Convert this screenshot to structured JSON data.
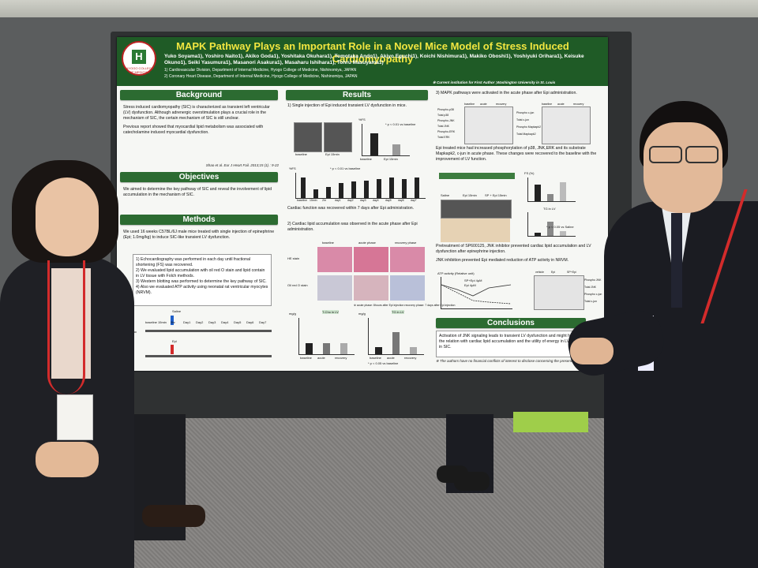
{
  "poster": {
    "title": "MAPK Pathway Plays an Important Role in a Novel Mice Model of Stress Induced Cardiomyopathy",
    "authors": "Yuko Soyama1), Yoshiro Naito1), Akiko Goda1), Yoshitaka Okuhara1), Tomotaka Ando1), Akiyo Eguchi1), Koichi Nishimura1), Makiko Oboshi1), Yoshiyuki Orihara1), Keisuke Okuno1), Seiki Yasumura1), Masanori Asakura1), Masaharu Ishihara1), Tohru Masuyama1)",
    "affiliations": [
      "1)    Cardiovascular Division, Department of Internal Medicine, Hyogo College of Medicine, Nishinomiya, JAPAN",
      "2)    Coronary Heart Disease, Department of Internal Medicine, Hyogo College of Medicine, Nishinomiya, JAPAN"
    ],
    "current_institution": "※ Current institution for First Author ;Washington University in St. Louis",
    "logo_letter": "H",
    "logo_text": "HYOGO COLLEGE OF MEDICINE",
    "background": {
      "header": "Background",
      "points": [
        "Stress induced cardiomyopathy (SIC) is characterized as transient left ventricular (LV) dysfunction. Although adrenergic overstimulation plays a crucial role in the mechanism of SIC, the certain mechanism of SIC is still unclear.",
        "Previous report showed that myocardial lipid metabolism was associated with catecholamine induced myocardial dysfunction."
      ],
      "citation": "Shao et al. Eur J Heart Fail. 2013;15 (1) : 9-22"
    },
    "objectives": {
      "header": "Objectives",
      "points": [
        "We aimed to determine the key pathway of SIC and reveal the involvement of lipid accumulation in the mechanism of SIC."
      ]
    },
    "methods": {
      "header": "Methods",
      "intro": "We used 16 weeks C57BL/6J male mice treated with single injection of epinephrine (Epi; 1.0mg/kg) to induce SIC-like transient LV dysfunction.",
      "steps": [
        "1)  Echocardiography was performed in each day until fractional shortening (FS) was recovered.",
        "2)  We evaluated lipid accumulation with oil red O stain and lipid contain in LV tissue with Folch methods.",
        "3)  Western blotting was performed to determine the key pathway of SIC.",
        "4)  Also we evaluated ATP activity using neonatal rat ventricular myocytes (NRVM)."
      ],
      "timeline": {
        "saline": "Saline",
        "epi": "Epi",
        "echo": "2D echo",
        "labels": [
          "baseline",
          "15min",
          "2hr",
          "Day1",
          "Day2",
          "Day3",
          "Day4",
          "Day5",
          "Day6",
          "Day7"
        ]
      }
    },
    "results": {
      "header": "Results",
      "r1": "1) Single injection of Epi induced transient LV dysfunction in mice.",
      "r1_img_labels": [
        "baseline",
        "Epi 15min"
      ],
      "r1_bar_labels": [
        "baseline",
        "Epi 15min"
      ],
      "r1_y": "%FS",
      "r1_sig": "* p < 0.01 vs baseline",
      "r1_ts_y": "%FS",
      "r1_ts_sig": "* p < 0.01 vs baseline",
      "r1_ts_x": [
        "baseline",
        "15min",
        "2hr",
        "day1",
        "day2",
        "day3",
        "day4",
        "day5",
        "day6",
        "day7"
      ],
      "r1_note": "Cardiac function was recovered within 7 days after Epi administration.",
      "r2": "2) Cardiac lipid accumulation was observed in the acute phase after Epi administration.",
      "stain_cols": [
        "baseline",
        "acute phase",
        "recovery phase"
      ],
      "stain_rows": [
        "HE stain",
        "Oil red O stain"
      ],
      "stain_caption": "※ acute phase: 8hours after Epi injection  recovery phase: 7 days after Epi injection",
      "lipid_charts": [
        {
          "ylabel": "mg/g",
          "title": "T-Cho in LV",
          "cats": [
            "baseline",
            "acute",
            "recovery"
          ],
          "values": [
            0.3,
            0.3,
            0.3
          ]
        },
        {
          "ylabel": "mg/g",
          "title": "TG in LV",
          "cats": [
            "baseline",
            "acute",
            "recovery"
          ],
          "values": [
            0.2,
            0.6,
            0.2
          ],
          "sig": "* p < 0.05 vs baseline"
        }
      ],
      "r3": "3) MAPK pathways were activated in the acute phase after Epi administration.",
      "blot_cols": [
        "baseline",
        "acute",
        "recovery"
      ],
      "blot_rows_left": [
        "Phospho-p38",
        "Total p38",
        "Phospho-JNK",
        "Total JNK",
        "Phospho-ERK",
        "Total ERK"
      ],
      "blot_rows_right": [
        "Phospho c-jun",
        "Total c-jun",
        "Phospho Mapkapk2",
        "Total Mapkapk2"
      ],
      "r3_note": "Epi treated mice had increased phosphorylation of p38, JNK,ERK and its substrate Mapkapk2, c-jun in acute phase. These changes were recovered to the baseline with the improvement of LV function.",
      "r4_pre": "Pretreatment of SP600125, JNK inhibitor prevented cardiac lipid accumulation and LV dysfunction after epinephrine injection.",
      "r4_labels": [
        "Saline",
        "Epi 15min",
        "SP + Epi 15min"
      ],
      "r4_fs": "FS (%)",
      "r4_tg": "TG in LV",
      "r4_sig": "* p < 0.05 vs Saline",
      "r4_sig2": "* p < 0.05 vs SP+Epi 4μM",
      "r5": "JNK inhibition prevented Epi mediated reduction of ATP activity in NRVM.",
      "atp_title": "ATP activity (Relative unit)",
      "atp_legend": [
        "SP+Epi 4μM",
        "Epi 4μM"
      ],
      "atp_blot_rows": [
        "Phospho JNK",
        "Total JNK",
        "Phospho c-jun",
        "Total c-jun"
      ],
      "atp_blot_cols": [
        "vehicle",
        "Epi",
        "SP+Epi"
      ]
    },
    "conclusions": {
      "header": "Conclusions",
      "text": "Activation of JNK signaling leads to transient LV dysfunction and might have the relation with cardiac lipid accumulation and the utility of energy in LV tissue in SIC.",
      "disclosure": "※ The authors have no financial conflicts of interest to disclose concerning the presentation."
    }
  },
  "colors": {
    "banner": "#1f5b26",
    "title": "#f2e640",
    "header": "#2c6b31",
    "lanyard": "#d32b2b"
  }
}
